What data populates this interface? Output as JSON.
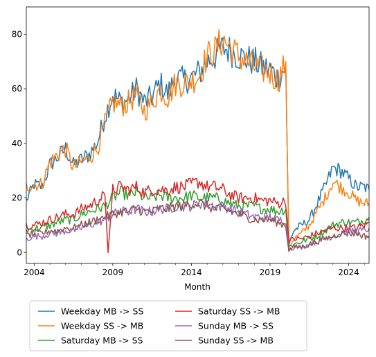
{
  "chart_data": {
    "type": "line",
    "title": "",
    "xlabel": "Month",
    "ylabel": "",
    "xlim": [
      2003.5,
      2025.3
    ],
    "ylim": [
      -4,
      90
    ],
    "x_ticks": [
      2004,
      2009,
      2014,
      2019,
      2024
    ],
    "x_tick_labels": [
      "2004",
      "2009",
      "2014",
      "2019",
      "2024"
    ],
    "y_ticks": [
      0,
      20,
      40,
      60,
      80
    ],
    "y_tick_labels": [
      "0",
      "20",
      "40",
      "60",
      "80"
    ],
    "grid": false,
    "legend_position": "below-chart",
    "legend_columns": 2,
    "series": [
      {
        "name": "Weekday MB -> SS",
        "color": "#1f77b4",
        "x": [
          2003.5,
          2004.0,
          2004.5,
          2005.0,
          2005.5,
          2006.0,
          2006.5,
          2007.0,
          2007.5,
          2008.0,
          2008.5,
          2009.0,
          2009.5,
          2010.0,
          2010.5,
          2011.0,
          2011.5,
          2012.0,
          2012.5,
          2013.0,
          2013.5,
          2014.0,
          2014.5,
          2015.0,
          2015.5,
          2016.0,
          2016.5,
          2017.0,
          2017.5,
          2018.0,
          2018.5,
          2019.0,
          2019.5,
          2020.0,
          2020.2,
          2020.5,
          2021.0,
          2021.5,
          2022.0,
          2022.5,
          2023.0,
          2023.5,
          2024.0,
          2024.5,
          2025.0,
          2025.3
        ],
        "values": [
          19,
          25,
          24,
          32,
          35,
          38,
          32,
          34,
          36,
          40,
          50,
          58,
          55,
          56,
          60,
          55,
          57,
          62,
          58,
          64,
          63,
          64,
          66,
          70,
          72,
          75,
          74,
          72,
          71,
          70,
          68,
          67,
          64,
          68,
          3,
          8,
          10,
          12,
          18,
          24,
          31,
          30,
          27,
          24,
          24,
          23
        ]
      },
      {
        "name": "Weekday SS -> MB",
        "color": "#ff7f0e",
        "x": [
          2003.5,
          2004.0,
          2004.5,
          2005.0,
          2005.5,
          2006.0,
          2006.5,
          2007.0,
          2007.5,
          2008.0,
          2008.5,
          2009.0,
          2009.5,
          2010.0,
          2010.5,
          2011.0,
          2011.5,
          2012.0,
          2012.5,
          2013.0,
          2013.5,
          2014.0,
          2014.5,
          2015.0,
          2015.5,
          2016.0,
          2016.5,
          2017.0,
          2017.5,
          2018.0,
          2018.5,
          2019.0,
          2019.5,
          2020.0,
          2020.2,
          2020.5,
          2021.0,
          2021.5,
          2022.0,
          2022.5,
          2023.0,
          2023.5,
          2024.0,
          2024.5,
          2025.0,
          2025.3
        ],
        "values": [
          24,
          25,
          25,
          33,
          36,
          38,
          31,
          33,
          35,
          38,
          47,
          55,
          54,
          55,
          58,
          52,
          55,
          60,
          57,
          62,
          62,
          63,
          65,
          72,
          74,
          78,
          75,
          72,
          70,
          68,
          67,
          66,
          63,
          70,
          2,
          5,
          7,
          10,
          15,
          20,
          26,
          24,
          22,
          19,
          18,
          18
        ]
      },
      {
        "name": "Saturday MB -> SS",
        "color": "#2ca02c",
        "x": [
          2003.5,
          2004.0,
          2004.5,
          2005.0,
          2005.5,
          2006.0,
          2006.5,
          2007.0,
          2007.5,
          2008.0,
          2008.5,
          2009.0,
          2009.5,
          2010.0,
          2010.5,
          2011.0,
          2011.5,
          2012.0,
          2012.5,
          2013.0,
          2013.5,
          2014.0,
          2014.5,
          2015.0,
          2015.5,
          2016.0,
          2016.5,
          2017.0,
          2017.5,
          2018.0,
          2018.5,
          2019.0,
          2019.5,
          2020.0,
          2020.2,
          2020.5,
          2021.0,
          2021.5,
          2022.0,
          2022.5,
          2023.0,
          2023.5,
          2024.0,
          2024.5,
          2025.0,
          2025.3
        ],
        "values": [
          8,
          9,
          9,
          10,
          11,
          12,
          12,
          14,
          15,
          16,
          17,
          20,
          22,
          21,
          22,
          20,
          20,
          21,
          20,
          20,
          20,
          21,
          20,
          20,
          20,
          19,
          18,
          17,
          17,
          17,
          16,
          16,
          15,
          16,
          2,
          3,
          4,
          5,
          6,
          8,
          10,
          11,
          11,
          11,
          12,
          13
        ]
      },
      {
        "name": "Saturday SS -> MB",
        "color": "#d62728",
        "x": [
          2003.5,
          2004.0,
          2004.5,
          2005.0,
          2005.5,
          2006.0,
          2006.5,
          2007.0,
          2007.5,
          2008.0,
          2008.5,
          2008.7,
          2009.0,
          2009.5,
          2010.0,
          2010.5,
          2011.0,
          2011.5,
          2012.0,
          2012.5,
          2013.0,
          2013.5,
          2014.0,
          2014.5,
          2015.0,
          2015.5,
          2016.0,
          2016.5,
          2017.0,
          2017.5,
          2018.0,
          2018.5,
          2019.0,
          2019.5,
          2020.0,
          2020.2,
          2020.5,
          2021.0,
          2021.5,
          2022.0,
          2022.5,
          2023.0,
          2023.5,
          2024.0,
          2024.5,
          2025.0,
          2025.3
        ],
        "values": [
          10,
          10,
          11,
          12,
          13,
          14,
          14,
          16,
          17,
          19,
          21,
          0,
          23,
          24,
          23,
          24,
          22,
          23,
          23,
          23,
          24,
          24,
          25,
          26,
          24,
          24,
          23,
          21,
          20,
          20,
          20,
          19,
          19,
          18,
          19,
          4,
          5,
          5,
          6,
          7,
          8,
          9,
          9,
          9,
          9,
          10,
          11
        ]
      },
      {
        "name": "Sunday MB -> SS",
        "color": "#9467bd",
        "x": [
          2003.5,
          2004.0,
          2004.5,
          2005.0,
          2005.5,
          2006.0,
          2006.5,
          2007.0,
          2007.5,
          2008.0,
          2008.5,
          2009.0,
          2009.5,
          2010.0,
          2010.5,
          2011.0,
          2011.5,
          2012.0,
          2012.5,
          2013.0,
          2013.5,
          2014.0,
          2014.5,
          2015.0,
          2015.5,
          2016.0,
          2016.5,
          2017.0,
          2017.5,
          2018.0,
          2018.5,
          2019.0,
          2019.5,
          2020.0,
          2020.2,
          2020.5,
          2021.0,
          2021.5,
          2022.0,
          2022.5,
          2023.0,
          2023.5,
          2024.0,
          2024.5,
          2025.0,
          2025.3
        ],
        "values": [
          5,
          6,
          6,
          7,
          7,
          8,
          8,
          9,
          10,
          11,
          12,
          14,
          15,
          15,
          16,
          15,
          15,
          16,
          16,
          17,
          17,
          17,
          18,
          18,
          17,
          17,
          16,
          15,
          14,
          13,
          13,
          13,
          12,
          12,
          1,
          2,
          2,
          3,
          4,
          5,
          6,
          7,
          8,
          8,
          8,
          9
        ]
      },
      {
        "name": "Sunday SS -> MB",
        "color": "#8c564b",
        "x": [
          2003.5,
          2004.0,
          2004.5,
          2005.0,
          2005.5,
          2006.0,
          2006.5,
          2007.0,
          2007.5,
          2008.0,
          2008.5,
          2009.0,
          2009.5,
          2010.0,
          2010.5,
          2011.0,
          2011.5,
          2012.0,
          2012.5,
          2013.0,
          2013.5,
          2014.0,
          2014.5,
          2015.0,
          2015.5,
          2016.0,
          2016.5,
          2017.0,
          2017.5,
          2018.0,
          2018.5,
          2019.0,
          2019.5,
          2020.0,
          2020.2,
          2020.5,
          2021.0,
          2021.5,
          2022.0,
          2022.5,
          2023.0,
          2023.5,
          2024.0,
          2024.5,
          2025.0,
          2025.3
        ],
        "values": [
          6,
          7,
          7,
          8,
          8,
          9,
          9,
          10,
          11,
          12,
          13,
          14,
          15,
          15,
          16,
          15,
          15,
          16,
          16,
          17,
          17,
          18,
          18,
          17,
          16,
          16,
          15,
          14,
          13,
          12,
          12,
          12,
          11,
          10,
          1,
          2,
          2,
          3,
          4,
          5,
          6,
          7,
          7,
          7,
          6,
          6
        ]
      }
    ]
  }
}
